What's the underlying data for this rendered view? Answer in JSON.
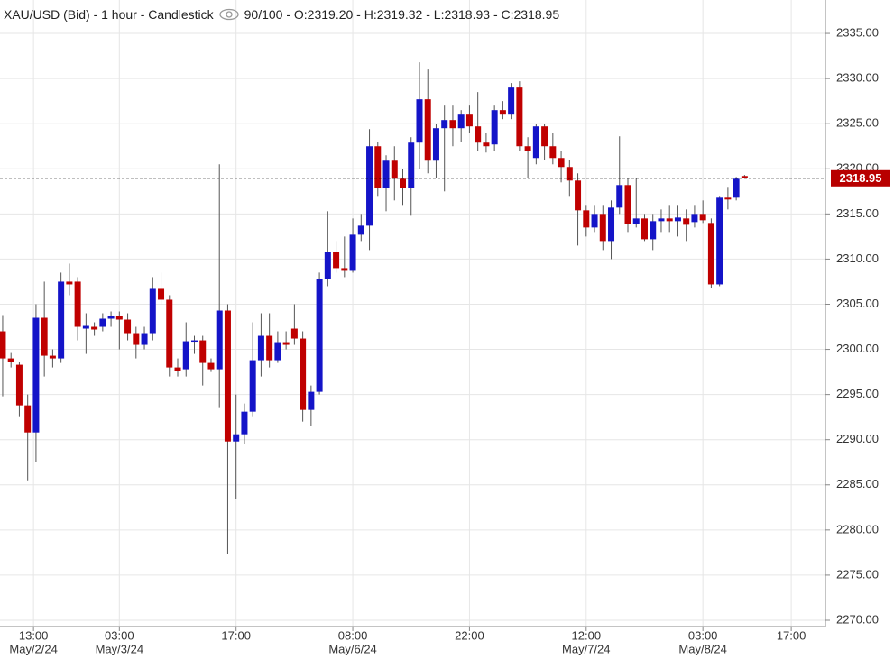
{
  "chart_data": {
    "type": "candlestick",
    "title": "XAU/USD (Bid) - 1 hour - Candlestick",
    "legend_text": "90/100 - O:2319.20 - H:2319.32 - L:2318.93 - C:2318.95",
    "up_color": "#1414c8",
    "down_color": "#c00000",
    "grid": true,
    "last_price": 2318.95,
    "ylim": [
      2269.3,
      2338.7
    ],
    "yticks": [
      {
        "value": 2270,
        "label": "2270.00"
      },
      {
        "value": 2275,
        "label": "2275.00"
      },
      {
        "value": 2280,
        "label": "2280.00"
      },
      {
        "value": 2285,
        "label": "2285.00"
      },
      {
        "value": 2290,
        "label": "2290.00"
      },
      {
        "value": 2295,
        "label": "2295.00"
      },
      {
        "value": 2300,
        "label": "2300.00"
      },
      {
        "value": 2305,
        "label": "2305.00"
      },
      {
        "value": 2310,
        "label": "2310.00"
      },
      {
        "value": 2315,
        "label": "2315.00"
      },
      {
        "value": 2320,
        "label": "2320.00"
      },
      {
        "value": 2325,
        "label": "2325.00"
      },
      {
        "value": 2330,
        "label": "2330.00"
      },
      {
        "value": 2335,
        "label": "2335.00"
      }
    ],
    "xlim": [
      -0.32,
      98.7
    ],
    "xticks": [
      {
        "value": 3.7,
        "label": "13:00",
        "date": "May/2/24"
      },
      {
        "value": 14,
        "label": "03:00",
        "date": "May/3/24"
      },
      {
        "value": 28,
        "label": "17:00"
      },
      {
        "value": 42,
        "label": "08:00",
        "date": "May/6/24"
      },
      {
        "value": 56,
        "label": "22:00"
      },
      {
        "value": 70,
        "label": "12:00",
        "date": "May/7/24"
      },
      {
        "value": 84,
        "label": "03:00",
        "date": "May/8/24"
      },
      {
        "value": 94.6,
        "label": "17:00"
      }
    ],
    "open": [
      2302.0,
      2299.0,
      2298.3,
      2293.8,
      2290.8,
      2303.5,
      2299.3,
      2299.0,
      2307.5,
      2307.5,
      2302.3,
      2302.5,
      2302.5,
      2303.4,
      2303.7,
      2303.3,
      2301.8,
      2300.5,
      2301.8,
      2306.7,
      2305.5,
      2298.0,
      2297.8,
      2300.9,
      2301.0,
      2298.5,
      2297.8,
      2304.3,
      2289.8,
      2290.6,
      2293.1,
      2298.8,
      2301.5,
      2298.8,
      2300.8,
      2302.3,
      2301.2,
      2293.3,
      2295.3,
      2307.8,
      2310.8,
      2309.0,
      2308.7,
      2312.7,
      2313.7,
      2322.5,
      2317.9,
      2320.9,
      2318.9,
      2317.9,
      2322.9,
      2327.7,
      2320.9,
      2324.5,
      2325.4,
      2324.5,
      2326.0,
      2324.7,
      2322.9,
      2322.7,
      2326.5,
      2326.0,
      2329.0,
      2322.5,
      2321.2,
      2324.7,
      2322.5,
      2321.2,
      2320.2,
      2318.7,
      2315.4,
      2313.5,
      2315.0,
      2312.0,
      2315.7,
      2318.2,
      2313.9,
      2314.5,
      2312.2,
      2314.2,
      2314.5,
      2314.2,
      2314.5,
      2314.1,
      2315.0,
      2314.0,
      2307.2,
      2316.8,
      2316.8,
      2319.2
    ],
    "high": [
      2303.8,
      2299.6,
      2298.6,
      2295.0,
      2305.0,
      2307.5,
      2300.0,
      2308.5,
      2309.5,
      2308.0,
      2304.0,
      2303.0,
      2304.0,
      2304.2,
      2304.2,
      2304.0,
      2302.5,
      2302.5,
      2308.0,
      2308.5,
      2306.0,
      2299.0,
      2303.0,
      2301.5,
      2301.5,
      2299.0,
      2320.5,
      2305.0,
      2295.0,
      2294.0,
      2303.0,
      2304.0,
      2304.0,
      2302.0,
      2302.0,
      2305.0,
      2302.0,
      2296.0,
      2308.5,
      2315.3,
      2312.0,
      2312.5,
      2314.5,
      2315.0,
      2324.4,
      2323.0,
      2321.5,
      2322.5,
      2320.0,
      2323.5,
      2331.8,
      2331.0,
      2325.0,
      2327.0,
      2327.0,
      2326.5,
      2327.0,
      2328.5,
      2324.0,
      2327.0,
      2327.5,
      2329.5,
      2329.7,
      2323.5,
      2325.0,
      2325.0,
      2324.0,
      2322.0,
      2321.0,
      2319.5,
      2316.0,
      2316.0,
      2316.0,
      2316.5,
      2323.6,
      2319.0,
      2319.0,
      2315.0,
      2315.0,
      2315.5,
      2316.0,
      2316.0,
      2315.5,
      2316.0,
      2316.5,
      2314.5,
      2317.0,
      2318.0,
      2319.1,
      2319.32
    ],
    "low": [
      2294.8,
      2298.0,
      2292.5,
      2285.5,
      2287.5,
      2297.0,
      2298.0,
      2298.5,
      2306.0,
      2301.0,
      2299.5,
      2301.5,
      2302.0,
      2302.5,
      2300.0,
      2301.0,
      2299.0,
      2300.0,
      2301.0,
      2305.0,
      2297.0,
      2297.0,
      2297.0,
      2299.5,
      2296.0,
      2297.5,
      2293.5,
      2277.3,
      2283.4,
      2289.5,
      2292.5,
      2297.0,
      2298.0,
      2298.5,
      2300.0,
      2300.5,
      2292.0,
      2291.5,
      2295.0,
      2307.0,
      2308.5,
      2308.0,
      2308.5,
      2312.0,
      2311.0,
      2317.0,
      2315.3,
      2316.5,
      2316.0,
      2314.8,
      2320.0,
      2319.5,
      2319.0,
      2317.5,
      2322.5,
      2323.0,
      2324.0,
      2322.0,
      2321.8,
      2322.0,
      2325.5,
      2325.5,
      2322.0,
      2319.0,
      2320.5,
      2321.0,
      2320.5,
      2318.5,
      2317.0,
      2311.5,
      2312.5,
      2313.0,
      2311.0,
      2310.0,
      2315.0,
      2313.0,
      2313.5,
      2312.0,
      2311.0,
      2313.0,
      2313.0,
      2312.5,
      2312.0,
      2313.5,
      2314.0,
      2306.8,
      2307.0,
      2315.5,
      2316.5,
      2318.93
    ],
    "close": [
      2299.0,
      2298.6,
      2293.8,
      2290.8,
      2303.5,
      2299.3,
      2299.0,
      2307.5,
      2307.2,
      2302.5,
      2302.6,
      2302.2,
      2303.4,
      2303.7,
      2303.3,
      2301.8,
      2300.5,
      2301.8,
      2306.7,
      2305.5,
      2298.0,
      2297.6,
      2300.9,
      2301.0,
      2298.5,
      2297.8,
      2304.3,
      2289.8,
      2290.6,
      2293.1,
      2298.8,
      2301.5,
      2298.8,
      2300.8,
      2300.5,
      2301.2,
      2293.3,
      2295.3,
      2307.8,
      2310.8,
      2309.0,
      2308.7,
      2312.7,
      2313.7,
      2322.5,
      2317.9,
      2320.9,
      2318.9,
      2317.9,
      2322.9,
      2327.7,
      2320.9,
      2324.5,
      2325.4,
      2324.5,
      2326.0,
      2324.7,
      2322.9,
      2322.5,
      2326.5,
      2326.0,
      2329.0,
      2322.5,
      2322.0,
      2324.7,
      2322.5,
      2321.2,
      2320.2,
      2318.7,
      2315.4,
      2313.5,
      2315.0,
      2312.0,
      2315.7,
      2318.2,
      2313.9,
      2314.5,
      2312.2,
      2314.2,
      2314.5,
      2314.2,
      2314.6,
      2313.8,
      2315.0,
      2314.3,
      2307.2,
      2316.8,
      2316.6,
      2318.9,
      2318.95
    ]
  }
}
